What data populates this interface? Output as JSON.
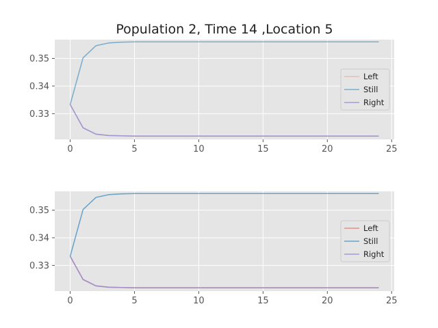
{
  "chart_data": [
    {
      "type": "line",
      "title": "Population 2, Time 14 ,Location 5",
      "xlabel": "",
      "ylabel": "",
      "xlim": [
        -1.2,
        25.2
      ],
      "ylim": [
        0.3207,
        0.3568
      ],
      "xticks": [
        0,
        5,
        10,
        15,
        20,
        25
      ],
      "yticks": [
        0.33,
        0.34,
        0.35
      ],
      "ytick_labels": [
        "0.33",
        "0.34",
        "0.35"
      ],
      "grid": true,
      "legend_position": "center-right",
      "x": [
        0,
        1,
        2,
        3,
        4,
        5,
        6,
        7,
        8,
        9,
        10,
        11,
        12,
        13,
        14,
        15,
        16,
        17,
        18,
        19,
        20,
        21,
        22,
        23,
        24
      ],
      "series": [
        {
          "name": "Left",
          "color": "#E24A33",
          "opacity": 0.25,
          "values": [
            0.3333,
            0.3249,
            0.3226,
            0.3221,
            0.322,
            0.3219,
            0.3219,
            0.3219,
            0.3219,
            0.3219,
            0.3219,
            0.3219,
            0.3219,
            0.3219,
            0.3219,
            0.3219,
            0.3219,
            0.3219,
            0.3219,
            0.3219,
            0.3219,
            0.3219,
            0.3219,
            0.3219,
            0.3219
          ]
        },
        {
          "name": "Still",
          "color": "#348ABD",
          "opacity": 0.6,
          "values": [
            0.3333,
            0.3502,
            0.3546,
            0.3556,
            0.3559,
            0.356,
            0.356,
            0.356,
            0.356,
            0.356,
            0.356,
            0.356,
            0.356,
            0.356,
            0.356,
            0.356,
            0.356,
            0.356,
            0.356,
            0.356,
            0.356,
            0.356,
            0.356,
            0.356,
            0.356
          ]
        },
        {
          "name": "Right",
          "color": "#988ED5",
          "opacity": 0.85,
          "values": [
            0.3333,
            0.3249,
            0.3226,
            0.3221,
            0.322,
            0.3219,
            0.3219,
            0.3219,
            0.3219,
            0.3219,
            0.3219,
            0.3219,
            0.3219,
            0.3219,
            0.3219,
            0.3219,
            0.3219,
            0.3219,
            0.3219,
            0.3219,
            0.3219,
            0.3219,
            0.3219,
            0.3219,
            0.3219
          ]
        }
      ]
    },
    {
      "type": "line",
      "title": "",
      "xlabel": "",
      "ylabel": "",
      "xlim": [
        -1.2,
        25.2
      ],
      "ylim": [
        0.3207,
        0.3568
      ],
      "xticks": [
        0,
        5,
        10,
        15,
        20,
        25
      ],
      "yticks": [
        0.33,
        0.34,
        0.35
      ],
      "ytick_labels": [
        "0.33",
        "0.34",
        "0.35"
      ],
      "grid": true,
      "legend_position": "center-right",
      "x": [
        0,
        1,
        2,
        3,
        4,
        5,
        6,
        7,
        8,
        9,
        10,
        11,
        12,
        13,
        14,
        15,
        16,
        17,
        18,
        19,
        20,
        21,
        22,
        23,
        24
      ],
      "series": [
        {
          "name": "Left",
          "color": "#E24A33",
          "opacity": 0.55,
          "values": [
            0.3333,
            0.3249,
            0.3226,
            0.3221,
            0.322,
            0.3219,
            0.3219,
            0.3219,
            0.3219,
            0.3219,
            0.3219,
            0.3219,
            0.3219,
            0.3219,
            0.3219,
            0.3219,
            0.3219,
            0.3219,
            0.3219,
            0.3219,
            0.3219,
            0.3219,
            0.3219,
            0.3219,
            0.3219
          ]
        },
        {
          "name": "Still",
          "color": "#348ABD",
          "opacity": 0.7,
          "values": [
            0.3333,
            0.3502,
            0.3546,
            0.3556,
            0.3559,
            0.356,
            0.356,
            0.356,
            0.356,
            0.356,
            0.356,
            0.356,
            0.356,
            0.356,
            0.356,
            0.356,
            0.356,
            0.356,
            0.356,
            0.356,
            0.356,
            0.356,
            0.356,
            0.356,
            0.356
          ]
        },
        {
          "name": "Right",
          "color": "#988ED5",
          "opacity": 0.85,
          "values": [
            0.3333,
            0.3249,
            0.3226,
            0.3221,
            0.322,
            0.3219,
            0.3219,
            0.3219,
            0.3219,
            0.3219,
            0.3219,
            0.3219,
            0.3219,
            0.3219,
            0.3219,
            0.3219,
            0.3219,
            0.3219,
            0.3219,
            0.3219,
            0.3219,
            0.3219,
            0.3219,
            0.3219,
            0.3219
          ]
        }
      ]
    }
  ]
}
